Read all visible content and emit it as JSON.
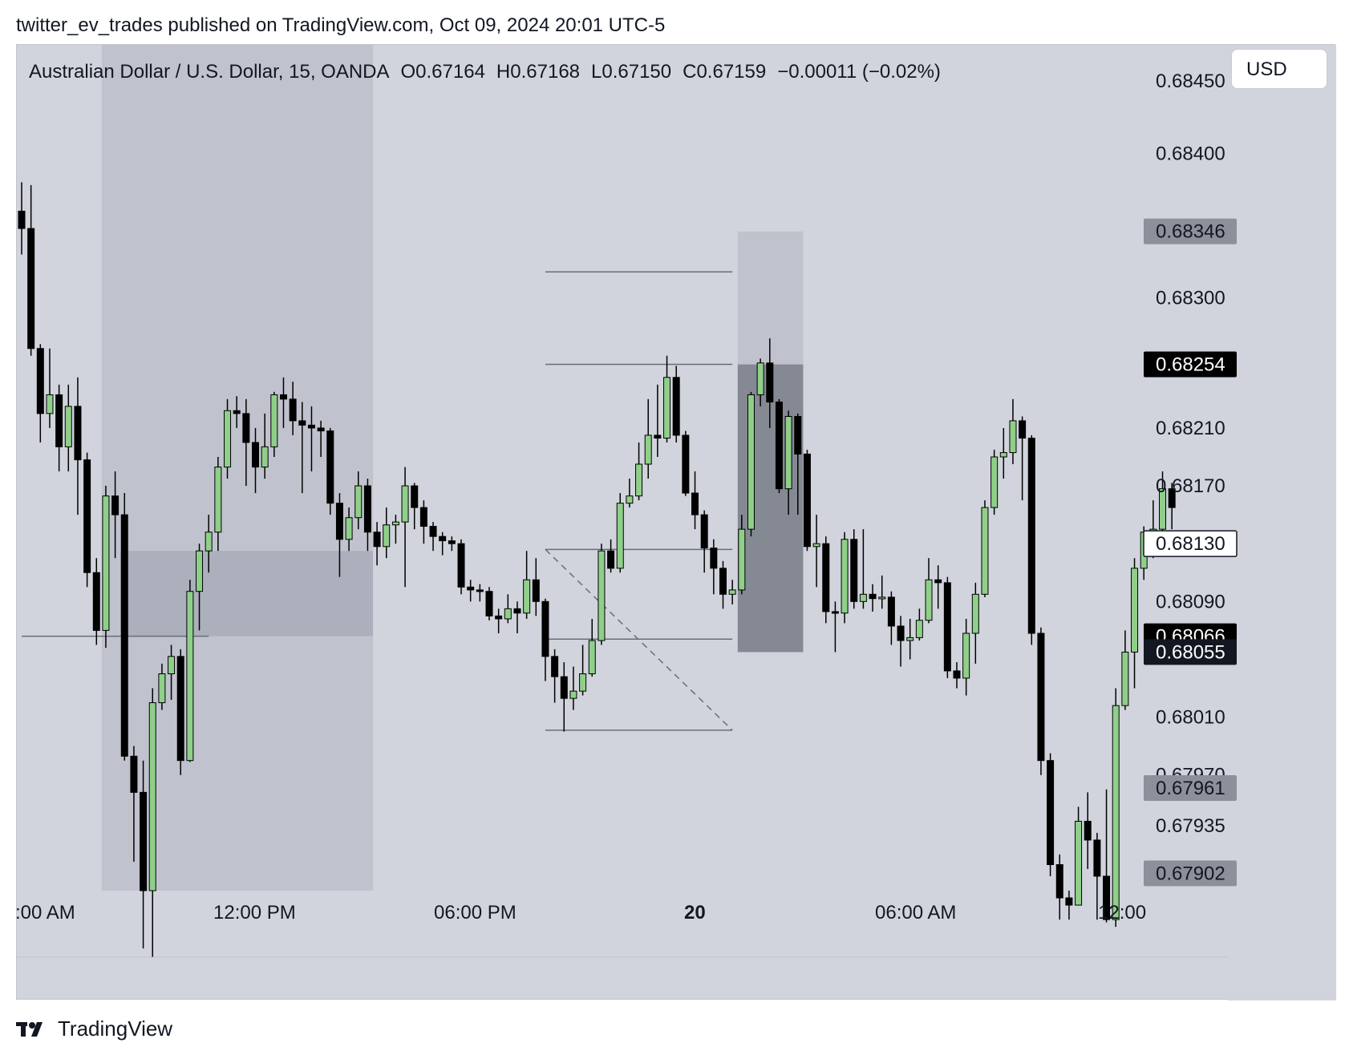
{
  "header": {
    "published_line": "twitter_ev_trades published on TradingView.com, Oct 09, 2024 20:01 UTC-5"
  },
  "legend": {
    "symbol": "Australian Dollar / U.S. Dollar, 15, OANDA",
    "open": "O0.67164",
    "high": "H0.67168",
    "low": "L0.67150",
    "close": "C0.67159",
    "change": "−0.00011 (−0.02%)"
  },
  "currency_button": "USD",
  "footer": {
    "brand": "TradingView"
  },
  "colors": {
    "background": "#d1d4dc",
    "bull": "#8fcf8a",
    "bear": "#000000",
    "zone_light": "#b9bdc8",
    "zone_dark": "#777b86"
  },
  "chart_data": {
    "type": "candlestick",
    "interval": "15",
    "y_axis": {
      "ylim": [
        0.6789,
        0.68475
      ],
      "tick_labels": [
        "0.68450",
        "0.68400",
        "0.68300",
        "0.68210",
        "0.68170",
        "0.68090",
        "0.68010",
        "0.67970",
        "0.67935"
      ],
      "tick_values": [
        0.6845,
        0.684,
        0.683,
        0.6821,
        0.6817,
        0.6809,
        0.6801,
        0.6797,
        0.67935
      ]
    },
    "x_axis": {
      "tick_labels": [
        ":00 AM",
        "12:00 PM",
        "06:00 PM",
        "20",
        "06:00 AM",
        "12:00"
      ],
      "bold_labels": [
        "20"
      ]
    },
    "price_tags": [
      {
        "label": "0.68346",
        "value": 0.68346,
        "style": "gray"
      },
      {
        "label": "0.68254",
        "value": 0.68254,
        "style": "black"
      },
      {
        "label": "0.68130",
        "value": 0.6813,
        "style": "outline"
      },
      {
        "label": "0.68066",
        "value": 0.68066,
        "style": "black"
      },
      {
        "label": "0.68055",
        "value": 0.68055,
        "style": "navy"
      },
      {
        "label": "0.67961",
        "value": 0.67961,
        "style": "gray"
      },
      {
        "label": "0.67902",
        "value": 0.67902,
        "style": "gray"
      }
    ],
    "zones": [
      {
        "x0": 9,
        "x1": 38,
        "y_low": 0.6789,
        "y_high": 0.68475,
        "style": "light"
      },
      {
        "x0": 11,
        "x1": 38,
        "y_low": 0.68066,
        "y_high": 0.68125,
        "style": "medium"
      },
      {
        "x0": 77,
        "x1": 84,
        "y_low": 0.68254,
        "y_high": 0.68346,
        "style": "light"
      },
      {
        "x0": 77,
        "x1": 84,
        "y_low": 0.68055,
        "y_high": 0.68254,
        "style": "dark"
      }
    ],
    "hlines": [
      {
        "x0": 0,
        "x1": 20,
        "value": 0.68066
      },
      {
        "x0": 56,
        "x1": 76,
        "value": 0.68318
      },
      {
        "x0": 56,
        "x1": 76,
        "value": 0.68254
      },
      {
        "x0": 56,
        "x1": 76,
        "value": 0.68126
      },
      {
        "x0": 56,
        "x1": 76,
        "value": 0.68064
      },
      {
        "x0": 56,
        "x1": 76,
        "value": 0.68001
      }
    ],
    "diagonal": {
      "x0": 56,
      "y0": 0.68126,
      "x1": 76,
      "y1": 0.68001
    },
    "candles": [
      [
        0.6836,
        0.68348,
        0.6838,
        0.6833
      ],
      [
        0.68348,
        0.68265,
        0.68378,
        0.6826
      ],
      [
        0.68265,
        0.6822,
        0.68268,
        0.682
      ],
      [
        0.6822,
        0.68233,
        0.68265,
        0.6821
      ],
      [
        0.68233,
        0.68197,
        0.6824,
        0.6818
      ],
      [
        0.68197,
        0.68225,
        0.6824,
        0.6818
      ],
      [
        0.68225,
        0.68188,
        0.68245,
        0.6815
      ],
      [
        0.68188,
        0.6811,
        0.68193,
        0.681
      ],
      [
        0.6811,
        0.6807,
        0.6812,
        0.6806
      ],
      [
        0.6807,
        0.68163,
        0.6817,
        0.68058
      ],
      [
        0.68163,
        0.6815,
        0.6818,
        0.6812
      ],
      [
        0.6815,
        0.67983,
        0.68165,
        0.6798
      ],
      [
        0.67983,
        0.67958,
        0.6799,
        0.6791
      ],
      [
        0.67958,
        0.6789,
        0.6798,
        0.6785
      ],
      [
        0.6789,
        0.6802,
        0.6803,
        0.6784
      ],
      [
        0.6802,
        0.6804,
        0.68047,
        0.68015
      ],
      [
        0.6804,
        0.68052,
        0.6806,
        0.68022
      ],
      [
        0.68052,
        0.6798,
        0.68057,
        0.6797
      ],
      [
        0.6798,
        0.68097,
        0.68105,
        0.67979
      ],
      [
        0.68097,
        0.68125,
        0.6813,
        0.6807
      ],
      [
        0.68125,
        0.68138,
        0.6815,
        0.6811
      ],
      [
        0.68138,
        0.68183,
        0.6819,
        0.68125
      ],
      [
        0.68183,
        0.68222,
        0.6823,
        0.68175
      ],
      [
        0.68222,
        0.6822,
        0.68232,
        0.6821
      ],
      [
        0.6822,
        0.682,
        0.6823,
        0.6817
      ],
      [
        0.682,
        0.68183,
        0.6821,
        0.68165
      ],
      [
        0.68183,
        0.68197,
        0.6822,
        0.68175
      ],
      [
        0.68197,
        0.68233,
        0.68235,
        0.6819
      ],
      [
        0.68233,
        0.6823,
        0.68245,
        0.6821
      ],
      [
        0.6823,
        0.68215,
        0.68242,
        0.68205
      ],
      [
        0.68215,
        0.68212,
        0.68228,
        0.68165
      ],
      [
        0.68212,
        0.6821,
        0.68225,
        0.6818
      ],
      [
        0.6821,
        0.68208,
        0.68215,
        0.6819
      ],
      [
        0.68208,
        0.68158,
        0.6821,
        0.6815
      ],
      [
        0.68158,
        0.68133,
        0.68165,
        0.68107
      ],
      [
        0.68133,
        0.68148,
        0.68155,
        0.68125
      ],
      [
        0.68148,
        0.6817,
        0.6818,
        0.6814
      ],
      [
        0.6817,
        0.68138,
        0.68175,
        0.68125
      ],
      [
        0.68138,
        0.68128,
        0.68145,
        0.68115
      ],
      [
        0.68128,
        0.68143,
        0.68155,
        0.6812
      ],
      [
        0.68143,
        0.68145,
        0.6815,
        0.6813
      ],
      [
        0.68145,
        0.6817,
        0.68183,
        0.681
      ],
      [
        0.6817,
        0.68155,
        0.68172,
        0.6814
      ],
      [
        0.68155,
        0.68142,
        0.6816,
        0.6813
      ],
      [
        0.68142,
        0.68135,
        0.68145,
        0.68125
      ],
      [
        0.68135,
        0.68132,
        0.68138,
        0.68122
      ],
      [
        0.68132,
        0.6813,
        0.68135,
        0.68125
      ],
      [
        0.6813,
        0.681,
        0.68133,
        0.68095
      ],
      [
        0.681,
        0.68098,
        0.68105,
        0.6809
      ],
      [
        0.68098,
        0.68097,
        0.68102,
        0.6809
      ],
      [
        0.68097,
        0.6808,
        0.681,
        0.68077
      ],
      [
        0.6808,
        0.68078,
        0.68085,
        0.68068
      ],
      [
        0.68078,
        0.68085,
        0.68095,
        0.68075
      ],
      [
        0.68085,
        0.68082,
        0.6809,
        0.68068
      ],
      [
        0.68082,
        0.68105,
        0.68125,
        0.68078
      ],
      [
        0.68105,
        0.6809,
        0.6812,
        0.6808
      ],
      [
        0.6809,
        0.68052,
        0.68092,
        0.68035
      ],
      [
        0.68052,
        0.68038,
        0.68057,
        0.6802
      ],
      [
        0.68038,
        0.68023,
        0.68048,
        0.68
      ],
      [
        0.68023,
        0.68028,
        0.68045,
        0.68015
      ],
      [
        0.68028,
        0.6804,
        0.6806,
        0.68025
      ],
      [
        0.6804,
        0.68063,
        0.68078,
        0.68038
      ],
      [
        0.68063,
        0.68125,
        0.6813,
        0.6806
      ],
      [
        0.68125,
        0.68113,
        0.68133,
        0.6811
      ],
      [
        0.68113,
        0.68158,
        0.68165,
        0.6811
      ],
      [
        0.68158,
        0.68163,
        0.68175,
        0.68155
      ],
      [
        0.68163,
        0.68185,
        0.682,
        0.6816
      ],
      [
        0.68185,
        0.68205,
        0.6823,
        0.68175
      ],
      [
        0.68205,
        0.68203,
        0.6824,
        0.6819
      ],
      [
        0.68203,
        0.68245,
        0.6826,
        0.682
      ],
      [
        0.68245,
        0.68205,
        0.68253,
        0.682
      ],
      [
        0.68205,
        0.68165,
        0.68208,
        0.68163
      ],
      [
        0.68165,
        0.6815,
        0.6818,
        0.6814
      ],
      [
        0.6815,
        0.68127,
        0.68153,
        0.6811
      ],
      [
        0.68127,
        0.68113,
        0.68133,
        0.68095
      ],
      [
        0.68113,
        0.68095,
        0.68118,
        0.68085
      ],
      [
        0.68095,
        0.68098,
        0.68105,
        0.68088
      ],
      [
        0.68098,
        0.6814,
        0.6815,
        0.68095
      ],
      [
        0.6814,
        0.68233,
        0.68235,
        0.68135
      ],
      [
        0.68233,
        0.68255,
        0.68258,
        0.68225
      ],
      [
        0.68255,
        0.68228,
        0.68272,
        0.6821
      ],
      [
        0.68228,
        0.68168,
        0.6823,
        0.68165
      ],
      [
        0.68168,
        0.68218,
        0.68222,
        0.6815
      ],
      [
        0.68218,
        0.68192,
        0.6822,
        0.6815
      ],
      [
        0.68192,
        0.68128,
        0.68195,
        0.68125
      ],
      [
        0.68128,
        0.6813,
        0.6815,
        0.681
      ],
      [
        0.6813,
        0.68083,
        0.68135,
        0.68075
      ],
      [
        0.68083,
        0.68082,
        0.6809,
        0.68055
      ],
      [
        0.68082,
        0.68133,
        0.68138,
        0.68075
      ],
      [
        0.68133,
        0.6809,
        0.6814,
        0.68085
      ],
      [
        0.6809,
        0.68095,
        0.6814,
        0.68085
      ],
      [
        0.68095,
        0.68092,
        0.68102,
        0.68083
      ],
      [
        0.68092,
        0.68093,
        0.68108,
        0.68085
      ],
      [
        0.68093,
        0.68073,
        0.68097,
        0.6806
      ],
      [
        0.68073,
        0.68063,
        0.6808,
        0.68045
      ],
      [
        0.68063,
        0.68065,
        0.68078,
        0.6805
      ],
      [
        0.68065,
        0.68077,
        0.68085,
        0.68063
      ],
      [
        0.68077,
        0.68105,
        0.6812,
        0.68075
      ],
      [
        0.68105,
        0.68103,
        0.68115,
        0.68085
      ],
      [
        0.68103,
        0.68042,
        0.68107,
        0.68037
      ],
      [
        0.68042,
        0.68037,
        0.68048,
        0.6803
      ],
      [
        0.68037,
        0.68068,
        0.68078,
        0.68025
      ],
      [
        0.68068,
        0.68095,
        0.68103,
        0.68047
      ],
      [
        0.68095,
        0.68155,
        0.6816,
        0.68093
      ],
      [
        0.68155,
        0.6819,
        0.68195,
        0.6815
      ],
      [
        0.6819,
        0.68193,
        0.6821,
        0.68175
      ],
      [
        0.68193,
        0.68215,
        0.6823,
        0.68185
      ],
      [
        0.68215,
        0.68203,
        0.68218,
        0.6816
      ],
      [
        0.68203,
        0.68068,
        0.68205,
        0.6806
      ],
      [
        0.68068,
        0.6798,
        0.68072,
        0.6797
      ],
      [
        0.6798,
        0.67908,
        0.67985,
        0.679
      ],
      [
        0.67908,
        0.67885,
        0.67915,
        0.6787
      ],
      [
        0.67885,
        0.6788,
        0.6789,
        0.6787
      ],
      [
        0.6788,
        0.67938,
        0.67948,
        0.6788
      ],
      [
        0.67938,
        0.67925,
        0.67958,
        0.67905
      ],
      [
        0.67925,
        0.679,
        0.6793,
        0.6787
      ],
      [
        0.679,
        0.6787,
        0.6796,
        0.67868
      ],
      [
        0.6787,
        0.68018,
        0.6803,
        0.67865
      ],
      [
        0.68018,
        0.68055,
        0.6807,
        0.68015
      ],
      [
        0.68055,
        0.68113,
        0.6812,
        0.6803
      ],
      [
        0.68113,
        0.68138,
        0.68142,
        0.68105
      ],
      [
        0.68138,
        0.6814,
        0.6816,
        0.6812
      ],
      [
        0.6814,
        0.68168,
        0.6818,
        0.6813
      ],
      [
        0.68168,
        0.68155,
        0.68172,
        0.6814
      ]
    ]
  }
}
